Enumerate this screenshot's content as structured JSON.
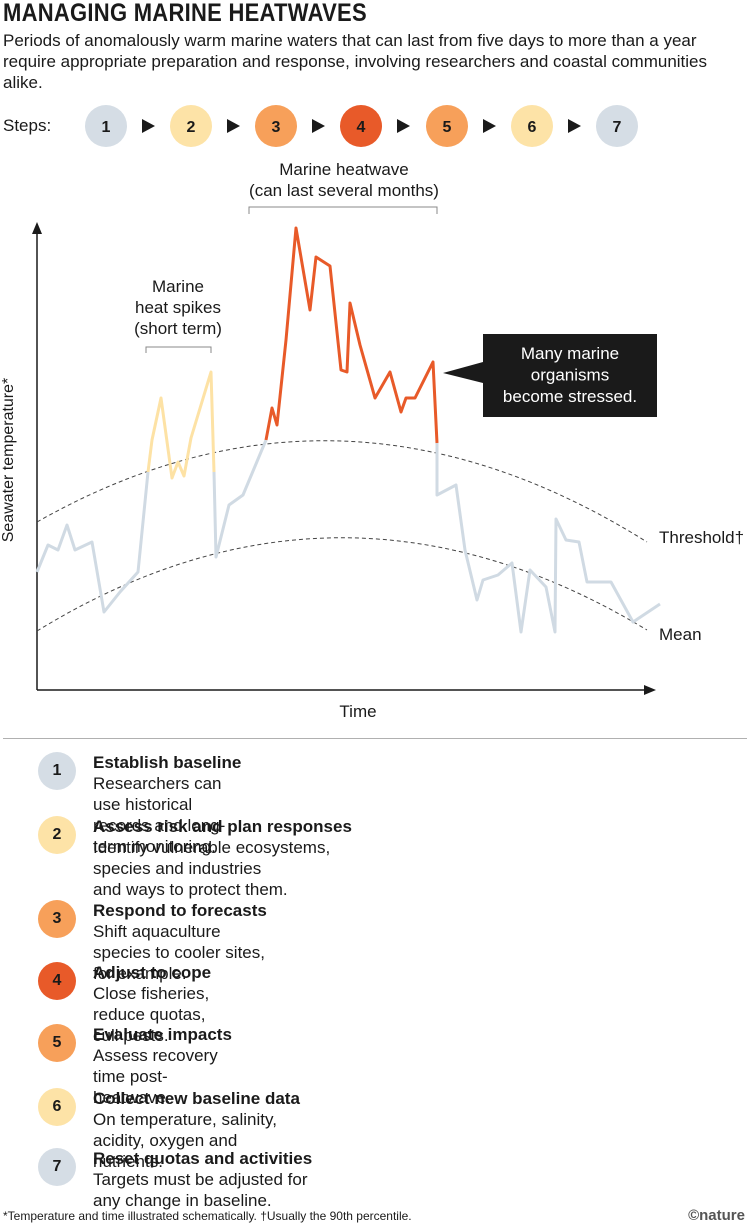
{
  "header": {
    "title": "Managing marine heatwaves",
    "subtitle": "Periods of anomalously warm marine waters that can last from five days to more than a year require appropriate preparation and response, involving researchers and coastal communities alike."
  },
  "colors": {
    "step1": "#d5dde5",
    "step2": "#fde3a7",
    "step3": "#f7a05a",
    "step4": "#e85a29",
    "step5": "#f7a05a",
    "step6": "#fde3a7",
    "step7": "#d5dde5",
    "baseline_line": "#d0dae3",
    "spike_line": "#fde2a5",
    "heatwave_line": "#e85a29",
    "callout_bg": "#1a1a1a"
  },
  "steps_bar": {
    "label": "Steps:",
    "numbers": [
      "1",
      "2",
      "3",
      "4",
      "5",
      "6",
      "7"
    ],
    "arrow_icon": "triangle-right-icon"
  },
  "diagram": {
    "heatwave_label": "Marine heatwave\n(can last several months)",
    "spikes_label": "Marine\nheat spikes\n(short term)",
    "callout": "Many marine\norganisms\nbecome stressed.",
    "threshold_label": "Threshold†",
    "mean_label": "Mean",
    "y_axis_label": "Seawater temperature*",
    "x_axis_label": "Time"
  },
  "steps": [
    {
      "num": "1",
      "title": "Establish baseline",
      "desc": "Researchers can use historical records and long-term monitoring."
    },
    {
      "num": "2",
      "title": "Assess risk and plan responses",
      "desc": "Identify vulnerable ecosystems, species and industries\nand ways to protect them."
    },
    {
      "num": "3",
      "title": "Respond to forecasts",
      "desc": "Shift aquaculture species to cooler sites, for example."
    },
    {
      "num": "4",
      "title": "Adjust to cope",
      "desc": "Close fisheries, reduce quotas, cull pests."
    },
    {
      "num": "5",
      "title": "Evaluate impacts",
      "desc": "Assess recovery time post-heatwave."
    },
    {
      "num": "6",
      "title": "Collect new baseline data",
      "desc": "On temperature, salinity, acidity, oxygen and nutrients."
    },
    {
      "num": "7",
      "title": "Reset quotas and activities",
      "desc": "Targets must be adjusted for any change in baseline."
    }
  ],
  "footnote": "*Temperature and time illustrated schematically. †Usually the 90th percentile.",
  "credit": "©nature"
}
